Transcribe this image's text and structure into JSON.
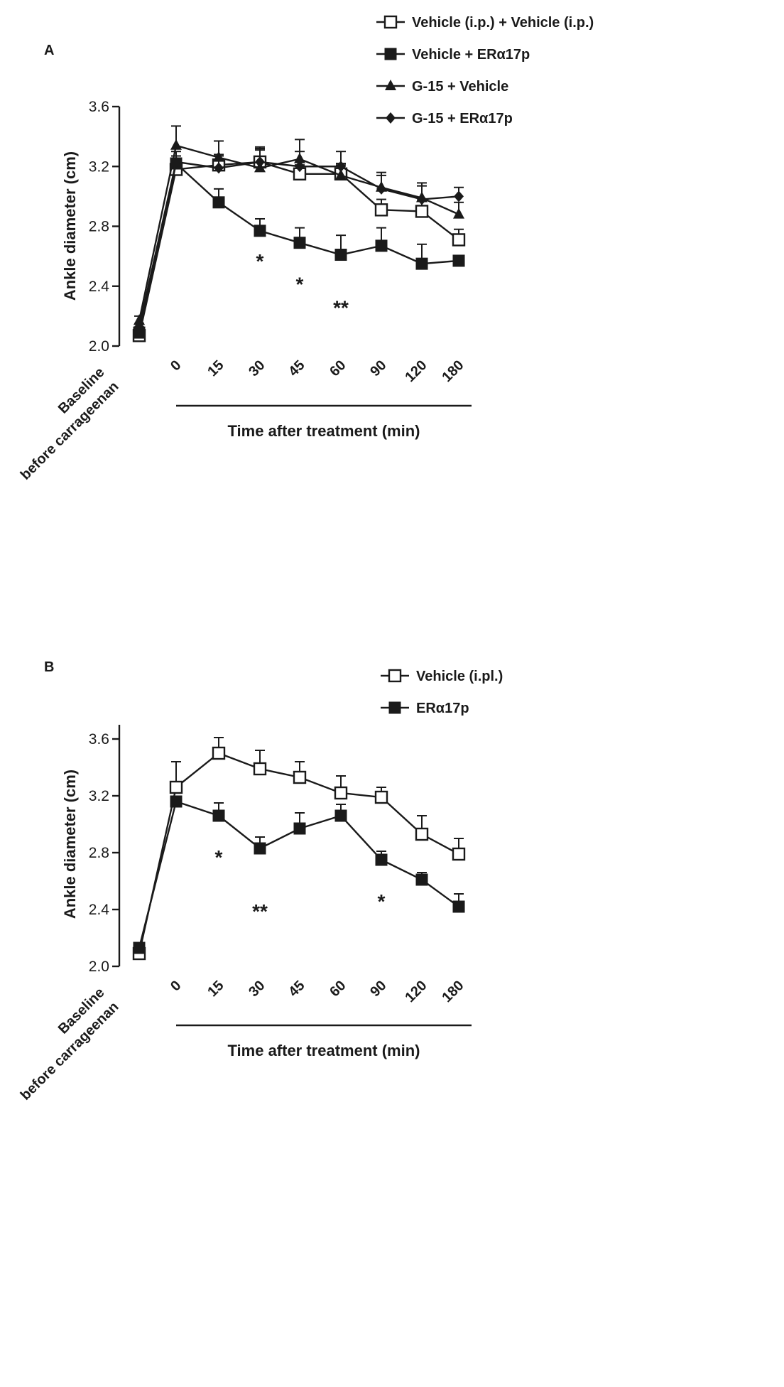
{
  "chart_data": [
    {
      "panel": "A",
      "type": "line",
      "ylabel": "Ankle diameter (cm)",
      "xlabel": "Time after treatment (min)",
      "ylim": [
        2.0,
        3.6
      ],
      "yticks": [
        "2.0",
        "2.4",
        "2.8",
        "3.2",
        "3.6"
      ],
      "categories": [
        "Baseline",
        "0",
        "15",
        "30",
        "45",
        "60",
        "90",
        "120",
        "180"
      ],
      "baseline_label": [
        "Baseline",
        "before carrageenan"
      ],
      "series": [
        {
          "name": "Vehicle (i.p.) + Vehicle (i.p.)",
          "marker": "square-open",
          "values": [
            2.07,
            3.18,
            3.21,
            3.23,
            3.15,
            3.15,
            2.91,
            2.9,
            2.71
          ],
          "errors": [
            0.02,
            0.06,
            0.07,
            0.1,
            0.06,
            0.06,
            0.07,
            0.07,
            0.07
          ]
        },
        {
          "name": "Vehicle + ERα17p",
          "marker": "square-filled",
          "values": [
            2.09,
            3.22,
            2.96,
            2.77,
            2.69,
            2.61,
            2.67,
            2.55,
            2.57
          ],
          "errors": [
            0.02,
            0.05,
            0.09,
            0.08,
            0.1,
            0.13,
            0.12,
            0.13,
            0.02
          ]
        },
        {
          "name": "G-15 + Vehicle",
          "marker": "triangle-filled",
          "values": [
            2.17,
            3.34,
            3.26,
            3.19,
            3.25,
            3.14,
            3.06,
            2.99,
            2.88
          ],
          "errors": [
            0.03,
            0.13,
            0.11,
            0.13,
            0.13,
            0.08,
            0.1,
            0.1,
            0.08
          ]
        },
        {
          "name": "G-15 + ERα17p",
          "marker": "diamond-filled",
          "values": [
            2.13,
            3.23,
            3.19,
            3.23,
            3.2,
            3.2,
            3.05,
            2.98,
            3.0
          ],
          "errors": [
            0.02,
            0.07,
            0.08,
            0.08,
            0.1,
            0.1,
            0.09,
            0.09,
            0.06
          ]
        }
      ],
      "annotations": [
        {
          "category": "30",
          "text": "*"
        },
        {
          "category": "45",
          "text": "*"
        },
        {
          "category": "60",
          "text": "**"
        }
      ]
    },
    {
      "panel": "B",
      "type": "line",
      "ylabel": "Ankle diameter (cm)",
      "xlabel": "Time after treatment (min)",
      "ylim": [
        2.0,
        3.7
      ],
      "yticks": [
        "2.0",
        "2.4",
        "2.8",
        "3.2",
        "3.6"
      ],
      "categories": [
        "Baseline",
        "0",
        "15",
        "30",
        "45",
        "60",
        "90",
        "120",
        "180"
      ],
      "baseline_label": [
        "Baseline",
        "before carrageenan"
      ],
      "series": [
        {
          "name": "Vehicle (i.pl.)",
          "marker": "square-open",
          "values": [
            2.09,
            3.26,
            3.5,
            3.39,
            3.33,
            3.22,
            3.19,
            2.93,
            2.79
          ],
          "errors": [
            0.02,
            0.18,
            0.11,
            0.13,
            0.11,
            0.12,
            0.07,
            0.13,
            0.11
          ]
        },
        {
          "name": "ERα17p",
          "marker": "square-filled",
          "values": [
            2.13,
            3.16,
            3.06,
            2.83,
            2.97,
            3.06,
            2.75,
            2.61,
            2.42
          ],
          "errors": [
            0.02,
            0.03,
            0.09,
            0.08,
            0.11,
            0.08,
            0.06,
            0.05,
            0.09
          ]
        }
      ],
      "annotations": [
        {
          "category": "15",
          "text": "*"
        },
        {
          "category": "30",
          "text": "**"
        },
        {
          "category": "90",
          "text": "*"
        }
      ]
    }
  ]
}
